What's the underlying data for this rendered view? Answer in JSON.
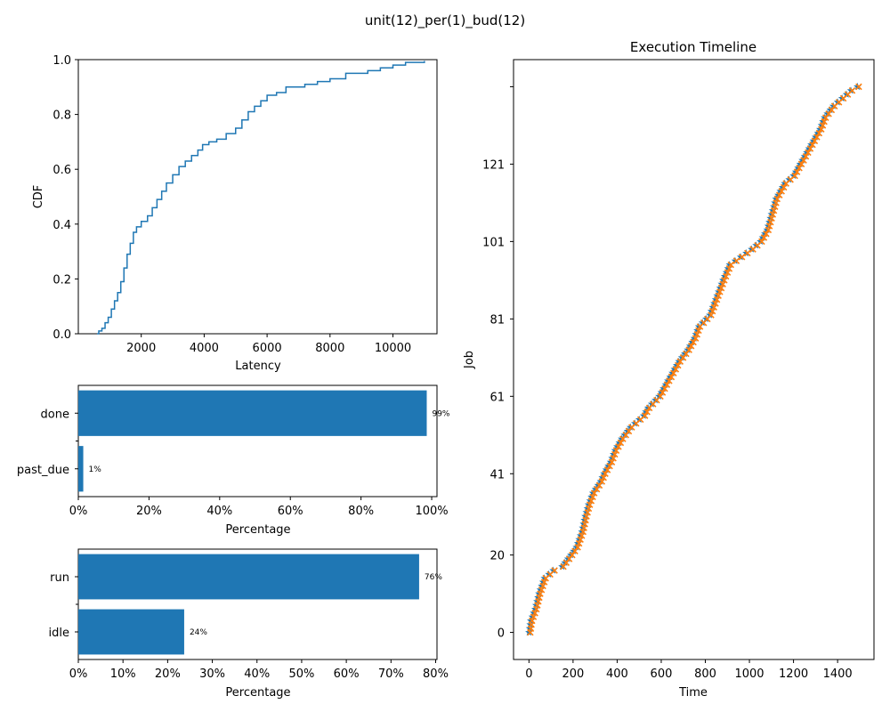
{
  "figure": {
    "suptitle": "unit(12)_per(1)_bud(12)"
  },
  "chart_data": [
    {
      "type": "line",
      "name": "cdf",
      "xlabel": "Latency",
      "ylabel": "CDF",
      "xlim": [
        0,
        11400
      ],
      "ylim": [
        0,
        1.0
      ],
      "xticks": [
        2000,
        4000,
        6000,
        8000,
        10000
      ],
      "yticks": [
        0.0,
        0.2,
        0.4,
        0.6,
        0.8,
        1.0
      ],
      "ytick_labels": [
        "0.0",
        "0.2",
        "0.4",
        "0.6",
        "0.8",
        "1.0"
      ],
      "points": [
        [
          600,
          0.0
        ],
        [
          650,
          0.01
        ],
        [
          750,
          0.02
        ],
        [
          850,
          0.04
        ],
        [
          950,
          0.06
        ],
        [
          1050,
          0.09
        ],
        [
          1150,
          0.12
        ],
        [
          1250,
          0.15
        ],
        [
          1350,
          0.19
        ],
        [
          1450,
          0.24
        ],
        [
          1550,
          0.29
        ],
        [
          1650,
          0.33
        ],
        [
          1750,
          0.37
        ],
        [
          1850,
          0.39
        ],
        [
          2000,
          0.41
        ],
        [
          2200,
          0.43
        ],
        [
          2350,
          0.46
        ],
        [
          2500,
          0.49
        ],
        [
          2650,
          0.52
        ],
        [
          2800,
          0.55
        ],
        [
          3000,
          0.58
        ],
        [
          3200,
          0.61
        ],
        [
          3400,
          0.63
        ],
        [
          3600,
          0.65
        ],
        [
          3800,
          0.67
        ],
        [
          3950,
          0.69
        ],
        [
          4150,
          0.7
        ],
        [
          4400,
          0.71
        ],
        [
          4700,
          0.73
        ],
        [
          5000,
          0.75
        ],
        [
          5200,
          0.78
        ],
        [
          5400,
          0.81
        ],
        [
          5600,
          0.83
        ],
        [
          5800,
          0.85
        ],
        [
          6000,
          0.87
        ],
        [
          6300,
          0.88
        ],
        [
          6600,
          0.9
        ],
        [
          7200,
          0.91
        ],
        [
          7600,
          0.92
        ],
        [
          8000,
          0.93
        ],
        [
          8500,
          0.95
        ],
        [
          9200,
          0.96
        ],
        [
          9600,
          0.97
        ],
        [
          10000,
          0.98
        ],
        [
          10400,
          0.99
        ],
        [
          11000,
          0.995
        ]
      ]
    },
    {
      "type": "bar",
      "orientation": "horizontal",
      "name": "status",
      "xlabel": "Percentage",
      "categories": [
        "done",
        "past_due"
      ],
      "values": [
        98.6,
        1.4
      ],
      "value_labels": [
        "99%",
        "1%"
      ],
      "xlim": [
        0,
        101.5
      ],
      "xticks": [
        0,
        20,
        40,
        60,
        80,
        100
      ],
      "xtick_labels": [
        "0%",
        "20%",
        "40%",
        "60%",
        "80%",
        "100%"
      ]
    },
    {
      "type": "bar",
      "orientation": "horizontal",
      "name": "utilization",
      "xlabel": "Percentage",
      "categories": [
        "run",
        "idle"
      ],
      "values": [
        76.3,
        23.7
      ],
      "value_labels": [
        "76%",
        "24%"
      ],
      "xlim": [
        0,
        80.3
      ],
      "xticks": [
        0,
        10,
        20,
        30,
        40,
        50,
        60,
        70,
        80
      ],
      "xtick_labels": [
        "0%",
        "10%",
        "20%",
        "30%",
        "40%",
        "50%",
        "60%",
        "70%",
        "80%"
      ]
    },
    {
      "type": "scatter",
      "name": "timeline",
      "title": "Execution Timeline",
      "xlabel": "Time",
      "ylabel": "Job",
      "xlim": [
        -70,
        1565
      ],
      "ylim": [
        -7,
        148
      ],
      "xticks": [
        0,
        200,
        400,
        600,
        800,
        1000,
        1200,
        1400
      ],
      "yticks": [
        0,
        20,
        41,
        61,
        81,
        101,
        121
      ],
      "ytick_labels": [
        "0",
        "20",
        "41",
        "61",
        "81",
        "101",
        "121"
      ],
      "extra_tick": 141,
      "job_count": 142,
      "time_knots": [
        [
          0,
          0
        ],
        [
          3,
          8
        ],
        [
          6,
          28
        ],
        [
          10,
          45
        ],
        [
          14,
          70
        ],
        [
          16,
          110
        ],
        [
          17,
          150
        ],
        [
          20,
          190
        ],
        [
          22,
          215
        ],
        [
          26,
          240
        ],
        [
          30,
          255
        ],
        [
          33,
          270
        ],
        [
          36,
          290
        ],
        [
          39,
          325
        ],
        [
          41,
          340
        ],
        [
          44,
          370
        ],
        [
          47,
          390
        ],
        [
          50,
          420
        ],
        [
          53,
          460
        ],
        [
          56,
          520
        ],
        [
          58,
          540
        ],
        [
          61,
          590
        ],
        [
          64,
          620
        ],
        [
          67,
          650
        ],
        [
          70,
          680
        ],
        [
          73,
          720
        ],
        [
          76,
          750
        ],
        [
          79,
          770
        ],
        [
          82,
          820
        ],
        [
          85,
          840
        ],
        [
          88,
          860
        ],
        [
          91,
          880
        ],
        [
          95,
          910
        ],
        [
          97,
          960
        ],
        [
          99,
          1010
        ],
        [
          101,
          1050
        ],
        [
          104,
          1080
        ],
        [
          108,
          1100
        ],
        [
          112,
          1120
        ],
        [
          116,
          1160
        ],
        [
          118,
          1200
        ],
        [
          121,
          1230
        ],
        [
          124,
          1260
        ],
        [
          127,
          1290
        ],
        [
          130,
          1320
        ],
        [
          133,
          1340
        ],
        [
          136,
          1380
        ],
        [
          138,
          1420
        ],
        [
          140,
          1460
        ],
        [
          141,
          1490
        ]
      ],
      "series": [
        {
          "marker": "star",
          "color": "#1f77b4"
        },
        {
          "marker": "x",
          "color": "#ff7f0e"
        }
      ]
    }
  ],
  "colors": {
    "bar": "#1f77b4",
    "line": "#1f77b4",
    "start": "#1f77b4",
    "end": "#ff7f0e"
  }
}
